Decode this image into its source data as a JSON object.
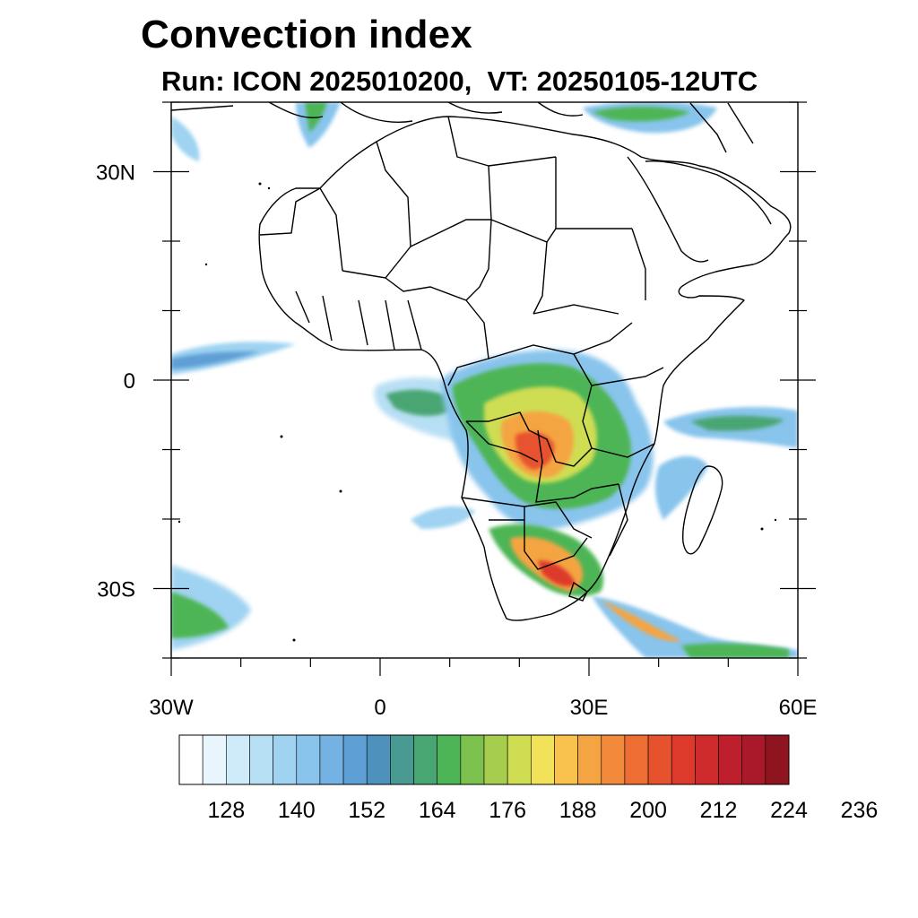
{
  "title": "Convection index",
  "subtitle": "Run: ICON 2025010200,  VT: 20250105-12UTC",
  "axes": {
    "y_ticks": [
      {
        "label": "30N",
        "lat": 30
      },
      {
        "label": "0",
        "lat": 0
      },
      {
        "label": "30S",
        "lat": -30
      }
    ],
    "x_ticks": [
      {
        "label": "30W",
        "lon": -30
      },
      {
        "label": "0",
        "lon": 0
      },
      {
        "label": "30E",
        "lon": 30
      },
      {
        "label": "60E",
        "lon": 60
      }
    ],
    "lon_range": [
      -30,
      60
    ],
    "lat_range": [
      -40,
      40
    ]
  },
  "colorbar": {
    "labels": [
      "128",
      "140",
      "152",
      "164",
      "176",
      "188",
      "200",
      "212",
      "224",
      "236"
    ],
    "colors": [
      "#ffffff",
      "#e8f5fc",
      "#cfeaf8",
      "#b7dff4",
      "#9fd3f1",
      "#88c4ec",
      "#73b2e2",
      "#5e9fd6",
      "#4e91bc",
      "#4a9a94",
      "#48a673",
      "#4db555",
      "#7cc04d",
      "#a7cd4f",
      "#cfdd52",
      "#f2e25a",
      "#f8c24d",
      "#f5a442",
      "#f28a3b",
      "#ee6d33",
      "#e6522e",
      "#dd3a2c",
      "#cf2a2c",
      "#be1f2d",
      "#a9192a",
      "#8e1520"
    ]
  },
  "map": {
    "region": "Africa",
    "features": [
      "coastlines",
      "country-borders",
      "convection-index-field"
    ]
  }
}
